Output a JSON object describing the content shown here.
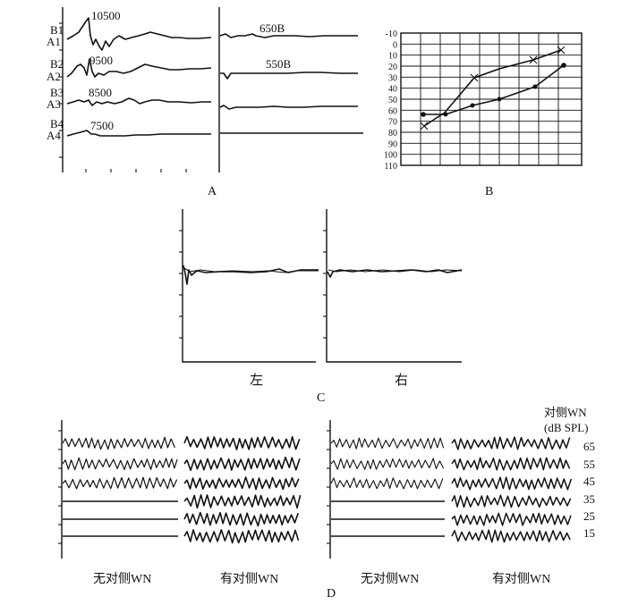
{
  "panelA": {
    "row_labels_b": [
      "B1",
      "B2",
      "B3",
      "B4"
    ],
    "row_labels_a": [
      "A1",
      "A2",
      "A3",
      "A4"
    ],
    "left_annotations": [
      "10500",
      "9500",
      "8500",
      "7500"
    ],
    "right_annotations": [
      "650B",
      "550B"
    ],
    "caption": "A"
  },
  "panelB": {
    "y_ticks": [
      "-10",
      "0",
      "10",
      "20",
      "30",
      "40",
      "50",
      "60",
      "70",
      "80",
      "90",
      "100",
      "110"
    ],
    "caption": "B"
  },
  "panelC": {
    "left_label": "左",
    "right_label": "右",
    "caption": "C"
  },
  "panelD": {
    "header_line1": "对侧WN",
    "header_line2": "(dB SPL)",
    "levels": [
      "65",
      "55",
      "45",
      "35",
      "25",
      "15"
    ],
    "left_group": {
      "without_label": "无对侧WN",
      "with_label": "有对侧WN"
    },
    "right_group": {
      "without_label": "无对侧WN",
      "with_label": "有对侧WN"
    },
    "caption": "D"
  }
}
